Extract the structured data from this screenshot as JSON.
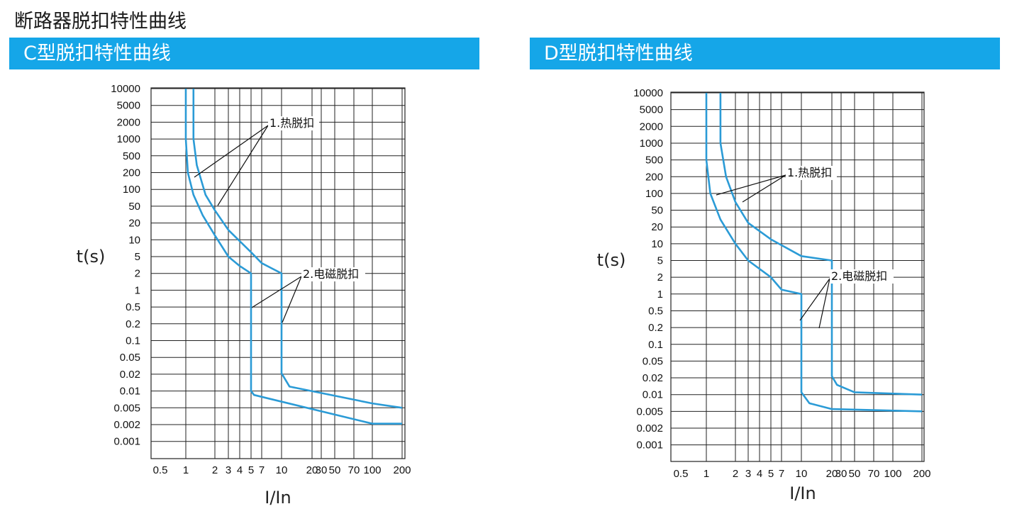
{
  "page": {
    "title": "断路器脱扣特性曲线"
  },
  "chart_data": [
    {
      "type": "line",
      "title": "C型脱扣特性曲线",
      "xlabel": "I/In",
      "ylabel": "t(s)",
      "x_scale": "log",
      "y_scale": "log",
      "x_ticks": [
        "0.5",
        "1",
        "2",
        "3",
        "4",
        "5",
        "7",
        "10",
        "20",
        "30",
        "50",
        "70",
        "100",
        "200"
      ],
      "y_ticks": [
        "10000",
        "5000",
        "2000",
        "1000",
        "500",
        "200",
        "100",
        "50",
        "20",
        "10",
        "5",
        "2",
        "1",
        "0.5",
        "0.2",
        "0.1",
        "0.05",
        "0.02",
        "0.01",
        "0.005",
        "0.002",
        "0.001"
      ],
      "annotations": [
        "1.热脱扣",
        "2.电磁脱扣"
      ],
      "series": [
        {
          "points": [
            [
              1,
              10000
            ],
            [
              1,
              1000
            ],
            [
              1.05,
              200
            ],
            [
              1.2,
              80
            ],
            [
              1.5,
              30
            ],
            [
              2,
              12
            ],
            [
              3,
              5
            ],
            [
              4,
              3
            ],
            [
              5,
              2
            ],
            [
              5,
              0.01
            ],
            [
              5.5,
              0.0085
            ],
            [
              100,
              0.0021
            ],
            [
              200,
              0.0021
            ]
          ]
        },
        {
          "points": [
            [
              1.2,
              10000
            ],
            [
              1.2,
              1000
            ],
            [
              1.3,
              300
            ],
            [
              1.6,
              80
            ],
            [
              2,
              40
            ],
            [
              3,
              15
            ],
            [
              5,
              6
            ],
            [
              7,
              3.5
            ],
            [
              10,
              2
            ],
            [
              10,
              0.021
            ],
            [
              12,
              0.012
            ],
            [
              100,
              0.006
            ],
            [
              200,
              0.005
            ]
          ]
        }
      ]
    },
    {
      "type": "line",
      "title": "D型脱扣特性曲线",
      "xlabel": "I/In",
      "ylabel": "t(s)",
      "x_scale": "log",
      "y_scale": "log",
      "x_ticks": [
        "0.5",
        "1",
        "2",
        "3",
        "4",
        "5",
        "7",
        "10",
        "20",
        "30",
        "50",
        "70",
        "100",
        "200"
      ],
      "y_ticks": [
        "10000",
        "5000",
        "2000",
        "1000",
        "500",
        "200",
        "100",
        "50",
        "20",
        "10",
        "5",
        "2",
        "1",
        "0.5",
        "0.2",
        "0.1",
        "0.05",
        "0.02",
        "0.01",
        "0.005",
        "0.002",
        "0.001"
      ],
      "annotations": [
        "1.热脱扣",
        "2.电磁脱扣"
      ],
      "series": [
        {
          "points": [
            [
              1,
              10000
            ],
            [
              1,
              500
            ],
            [
              1.1,
              100
            ],
            [
              1.4,
              30
            ],
            [
              2,
              10
            ],
            [
              3,
              5
            ],
            [
              5,
              2
            ],
            [
              7,
              1.2
            ],
            [
              10,
              1
            ],
            [
              10,
              0.011
            ],
            [
              12,
              0.007
            ],
            [
              20,
              0.0055
            ],
            [
              200,
              0.005
            ]
          ]
        },
        {
          "points": [
            [
              1.4,
              10000
            ],
            [
              1.4,
              1000
            ],
            [
              1.6,
              200
            ],
            [
              2,
              70
            ],
            [
              3,
              25
            ],
            [
              5,
              12
            ],
            [
              10,
              6
            ],
            [
              20,
              5
            ],
            [
              20,
              0.022
            ],
            [
              25,
              0.015
            ],
            [
              50,
              0.011
            ],
            [
              200,
              0.01
            ]
          ]
        }
      ]
    }
  ],
  "colors": {
    "curve": "#2b9bd6",
    "band": "#15a6e8",
    "grid": "#222222"
  }
}
